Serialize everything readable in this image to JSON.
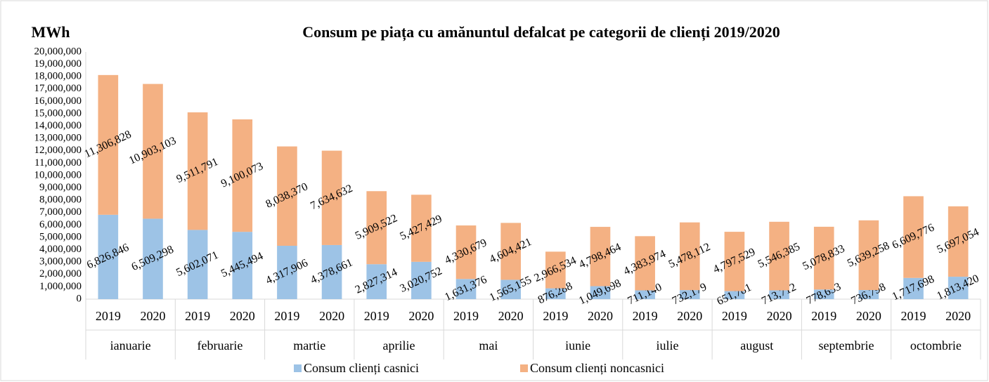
{
  "chart_data": {
    "type": "stacked_bar",
    "title": "Consum pe piața cu amănuntul defalcat pe categorii de clienți 2019/2020",
    "ylabel": "MWh",
    "categories": [
      "2019",
      "2020",
      "2019",
      "2020",
      "2019",
      "2020",
      "2019",
      "2020",
      "2019",
      "2020",
      "2019",
      "2020",
      "2019",
      "2020",
      "2019",
      "2020",
      "2019",
      "2020",
      "2019",
      "2020"
    ],
    "category_groups": [
      "ianuarie",
      "februarie",
      "martie",
      "aprilie",
      "mai",
      "iunie",
      "iulie",
      "august",
      "septembrie",
      "octombrie"
    ],
    "series": [
      {
        "name": "Consum clienți casnici",
        "color": "#9dc3e6",
        "values": [
          6826846,
          6509298,
          5602071,
          5445494,
          4317906,
          4378661,
          2827314,
          3020752,
          1631376,
          1565155,
          876288,
          1049698,
          711140,
          732179,
          651781,
          713712,
          778653,
          736798,
          1717698,
          1813420
        ],
        "value_labels": [
          "6,826,846",
          "6,509,298",
          "5,602,071",
          "5,445,494",
          "4,317,906",
          "4,378,661",
          "2,827,314",
          "3,020,752",
          "1,631,376",
          "1,565,155",
          "876,288",
          "1,049,698",
          "711,140",
          "732,179",
          "651,781",
          "713,712",
          "778,653",
          "736,798",
          "1,717,698",
          "1,813,420"
        ]
      },
      {
        "name": "Consum clienți noncasnici",
        "color": "#f4b183",
        "values": [
          11306828,
          10903103,
          9511791,
          9100073,
          8038370,
          7634632,
          5909522,
          5427429,
          4330679,
          4604421,
          2966534,
          4798464,
          4383974,
          5478112,
          4797529,
          5546385,
          5078833,
          5639258,
          6609776,
          5697054
        ],
        "value_labels": [
          "11,306,828",
          "10,903,103",
          "9,511,791",
          "9,100,073",
          "8,038,370",
          "7,634,632",
          "5,909,522",
          "5,427,429",
          "4,330,679",
          "4,604,421",
          "2,966,534",
          "4,798,464",
          "4,383,974",
          "5,478,112",
          "4,797,529",
          "5,546,385",
          "5,078,833",
          "5,639,258",
          "6,609,776",
          "5,697,054"
        ]
      }
    ],
    "ylim": [
      0,
      20000000
    ],
    "yticks": [
      0,
      {
        "value": 1000000,
        "label": "1,000,000"
      },
      {
        "value": 2000000,
        "label": "2,000,000"
      },
      {
        "value": 3000000,
        "label": "3,000,000"
      },
      {
        "value": 4000000,
        "label": "4,000,000"
      },
      {
        "value": 5000000,
        "label": "5,000,000"
      },
      {
        "value": 6000000,
        "label": "6,000,000"
      },
      {
        "value": 7000000,
        "label": "7,000,000"
      },
      {
        "value": 8000000,
        "label": "8,000,000"
      },
      {
        "value": 9000000,
        "label": "9,000,000"
      },
      {
        "value": 10000000,
        "label": "10,000,000"
      },
      {
        "value": 11000000,
        "label": "11,000,000"
      },
      {
        "value": 12000000,
        "label": "12,000,000"
      },
      {
        "value": 13000000,
        "label": "13,000,000"
      },
      {
        "value": 14000000,
        "label": "14,000,000"
      },
      {
        "value": 15000000,
        "label": "15,000,000"
      },
      {
        "value": 16000000,
        "label": "16,000,000"
      },
      {
        "value": 17000000,
        "label": "17,000,000"
      },
      {
        "value": 18000000,
        "label": "18,000,000"
      },
      {
        "value": 19000000,
        "label": "19,000,000"
      },
      {
        "value": 20000000,
        "label": "20,000,000"
      }
    ],
    "legend": "bottom"
  }
}
